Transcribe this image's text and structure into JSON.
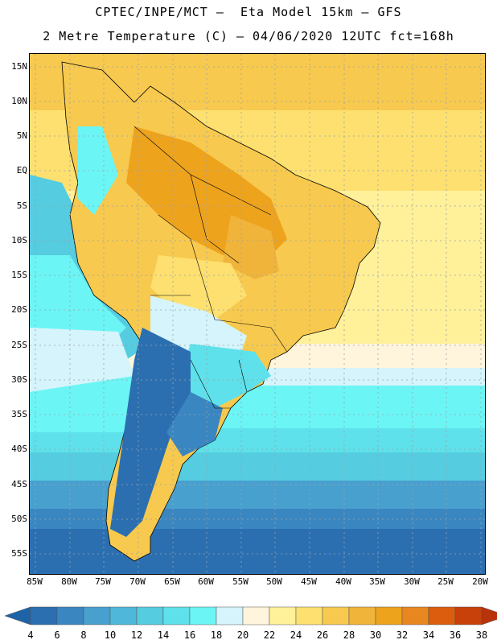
{
  "title": {
    "line1": "CPTEC/INPE/MCT –  Eta Model 15km – GFS",
    "line2": "2 Metre Temperature (C) – 04/06/2020 12UTC fct=168h"
  },
  "map": {
    "lat_labels": [
      "15N",
      "10N",
      "5N",
      "EQ",
      "5S",
      "10S",
      "15S",
      "20S",
      "25S",
      "30S",
      "35S",
      "40S",
      "45S",
      "50S",
      "55S"
    ],
    "lon_labels": [
      "85W",
      "80W",
      "75W",
      "70W",
      "65W",
      "60W",
      "55W",
      "50W",
      "45W",
      "40W",
      "35W",
      "30W",
      "25W",
      "20W"
    ]
  },
  "colorbar": {
    "labels": [
      "4",
      "6",
      "8",
      "10",
      "12",
      "14",
      "16",
      "18",
      "20",
      "22",
      "24",
      "26",
      "28",
      "30",
      "32",
      "34",
      "36",
      "38"
    ],
    "colors": [
      "#1e63a8",
      "#2b6fb1",
      "#3a86c0",
      "#48a0cf",
      "#4fb8da",
      "#55ccdf",
      "#5ee1ea",
      "#6cf5f5",
      "#d5f4fb",
      "#fff5dc",
      "#fff09a",
      "#fde070",
      "#f7c94e",
      "#f0b43b",
      "#eea31d",
      "#e8861f",
      "#dc5d0d",
      "#c8410a",
      "#b8320a"
    ]
  }
}
